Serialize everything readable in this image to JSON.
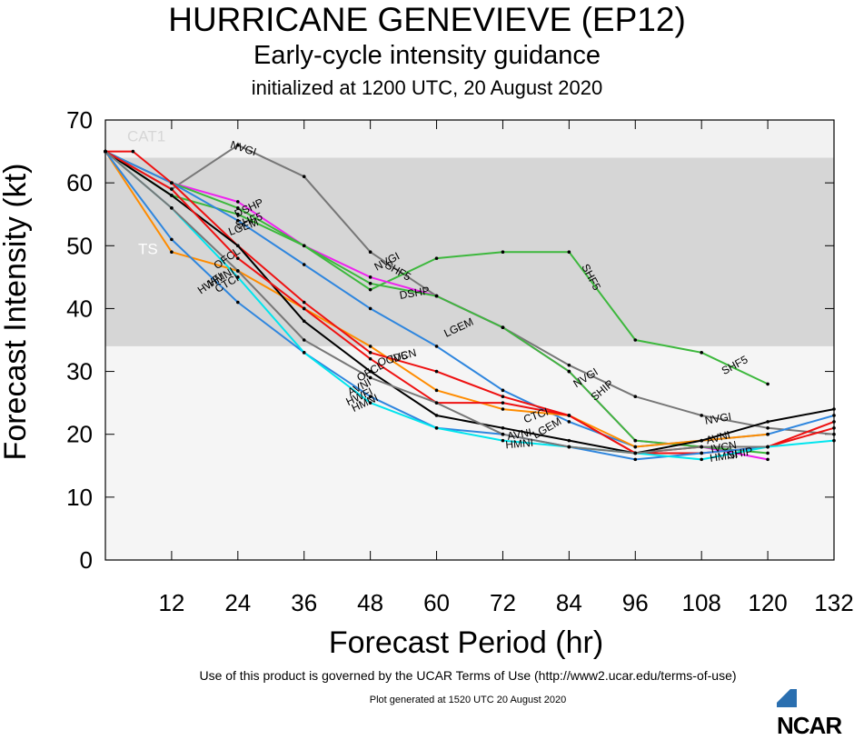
{
  "header": {
    "title": "HURRICANE GENEVIEVE (EP12)",
    "subtitle": "Early-cycle intensity guidance",
    "init_line": "initialized at 1200 UTC, 20 August 2020"
  },
  "footer": {
    "terms": "Use of this product is governed by the UCAR Terms of Use (http://www2.ucar.edu/terms-of-use)",
    "generated": "Plot generated at 1520 UTC  20 August 2020",
    "logo": "NCAR"
  },
  "chart_data": {
    "type": "line",
    "xlabel": "Forecast Period (hr)",
    "ylabel": "Forecast Intensity (kt)",
    "xlim": [
      0,
      132
    ],
    "ylim": [
      0,
      70
    ],
    "xticks": [
      12,
      24,
      36,
      48,
      60,
      72,
      84,
      96,
      108,
      120,
      132
    ],
    "yticks": [
      0,
      10,
      20,
      30,
      40,
      50,
      60,
      70
    ],
    "bands": [
      {
        "label": "CAT1",
        "from": 64,
        "to": 70,
        "color": "#f2f2f2"
      },
      {
        "label": "TS",
        "from": 34,
        "to": 64,
        "color": "#d6d6d6"
      }
    ],
    "series": [
      {
        "name": "NVGI",
        "color": "#777777",
        "x": [
          0,
          12,
          24,
          36,
          48,
          60,
          72,
          84,
          96,
          108,
          120,
          132
        ],
        "y": [
          65,
          59,
          66,
          61,
          49,
          42,
          37,
          31,
          26,
          23,
          21,
          20
        ]
      },
      {
        "name": "SHF5",
        "color": "#3db83d",
        "x": [
          0,
          12,
          24,
          36,
          48,
          60,
          72,
          84,
          96,
          108,
          120
        ],
        "y": [
          65,
          58,
          55,
          50,
          43,
          48,
          49,
          49,
          35,
          33,
          28
        ]
      },
      {
        "name": "DSHP",
        "color": "#ee22ee",
        "x": [
          0,
          12,
          24,
          36,
          48,
          60,
          72,
          84,
          96,
          108,
          120
        ],
        "y": [
          65,
          60,
          57,
          50,
          45,
          42,
          37,
          30,
          19,
          18,
          16
        ]
      },
      {
        "name": "SHIP",
        "color": "#3db83d",
        "x": [
          0,
          12,
          24,
          36,
          48,
          60,
          72,
          84,
          96,
          108,
          120
        ],
        "y": [
          65,
          60,
          56,
          50,
          44,
          42,
          37,
          30,
          19,
          18,
          17
        ]
      },
      {
        "name": "LGEM",
        "color": "#2f86de",
        "x": [
          0,
          12,
          24,
          36,
          48,
          60,
          72,
          84,
          96,
          108,
          120,
          132
        ],
        "y": [
          65,
          60,
          54,
          47,
          40,
          34,
          27,
          22,
          18,
          19,
          20,
          23
        ]
      },
      {
        "name": "OCD5",
        "color": "#ff8c00",
        "x": [
          0,
          12,
          24,
          36,
          48,
          60,
          72,
          84,
          96,
          108,
          120
        ],
        "y": [
          65,
          49,
          46,
          40,
          34,
          27,
          24,
          23,
          18,
          19,
          20
        ]
      },
      {
        "name": "OFCL",
        "color": "#ee1111",
        "x": [
          0,
          5,
          12,
          24,
          36,
          48,
          60,
          72,
          84,
          96,
          108,
          120,
          132
        ],
        "y": [
          65,
          65,
          60,
          50,
          41,
          33,
          30,
          26,
          23,
          17,
          18,
          18,
          22
        ]
      },
      {
        "name": "CTCI",
        "color": "#000000",
        "x": [
          0,
          12,
          24,
          36,
          48,
          60,
          72,
          84,
          96,
          108,
          120,
          132
        ],
        "y": [
          65,
          58,
          50,
          38,
          30,
          23,
          21,
          19,
          17,
          19,
          22,
          24
        ]
      },
      {
        "name": "IVCN",
        "color": "#ee1111",
        "x": [
          0,
          12,
          24,
          36,
          48,
          60,
          72,
          84,
          96,
          108,
          120,
          132
        ],
        "y": [
          65,
          59,
          48,
          40,
          32,
          25,
          25,
          23,
          17,
          17,
          18,
          21
        ]
      },
      {
        "name": "HWFI",
        "color": "#2f86de",
        "x": [
          0,
          12,
          24,
          36,
          48,
          60,
          72,
          84,
          96,
          108,
          120
        ],
        "y": [
          65,
          51,
          41,
          33,
          26,
          21,
          20,
          18,
          16,
          17,
          18
        ]
      },
      {
        "name": "HMNI",
        "color": "#00e5ee",
        "x": [
          0,
          12,
          24,
          36,
          48,
          60,
          72,
          84,
          96,
          108,
          120,
          132
        ],
        "y": [
          65,
          56,
          45,
          33,
          25,
          21,
          19,
          18,
          17,
          16,
          18,
          19
        ]
      },
      {
        "name": "AVNI",
        "color": "#777777",
        "x": [
          0,
          12,
          24,
          36,
          48,
          60,
          72,
          84,
          96,
          108,
          120
        ],
        "y": [
          65,
          56,
          46,
          35,
          29,
          25,
          20,
          18,
          17,
          18,
          18
        ]
      }
    ],
    "labels": [
      {
        "text": "NVGI",
        "x": 25,
        "y": 65.5,
        "rot": 18
      },
      {
        "text": "NVGI",
        "x": 51,
        "y": 47.5,
        "rot": -28
      },
      {
        "text": "NVGI",
        "x": 87,
        "y": 29,
        "rot": -32
      },
      {
        "text": "NVGI",
        "x": 111,
        "y": 22.5,
        "rot": -10
      },
      {
        "text": "SHF5",
        "x": 26,
        "y": 54,
        "rot": -20
      },
      {
        "text": "SHF5",
        "x": 53,
        "y": 46,
        "rot": 30
      },
      {
        "text": "SHF5",
        "x": 88,
        "y": 45,
        "rot": 62
      },
      {
        "text": "SHF5",
        "x": 114,
        "y": 31,
        "rot": -28
      },
      {
        "text": "DSHP",
        "x": 26,
        "y": 56,
        "rot": -25
      },
      {
        "text": "DSHP",
        "x": 56,
        "y": 42.5,
        "rot": -10
      },
      {
        "text": "SHIP",
        "x": 90,
        "y": 27,
        "rot": -40
      },
      {
        "text": "SHIP",
        "x": 115,
        "y": 17,
        "rot": -10
      },
      {
        "text": "LGEM",
        "x": 25,
        "y": 53,
        "rot": -20
      },
      {
        "text": "LGEM",
        "x": 64,
        "y": 37,
        "rot": -25
      },
      {
        "text": "LGEM",
        "x": 80,
        "y": 21,
        "rot": -30
      },
      {
        "text": "OCD5",
        "x": 52,
        "y": 32,
        "rot": -15
      },
      {
        "text": "OFCL",
        "x": 48,
        "y": 30,
        "rot": -30
      },
      {
        "text": "OFCL",
        "x": 22,
        "y": 48,
        "rot": -35
      },
      {
        "text": "CTCI",
        "x": 22,
        "y": 44,
        "rot": -30
      },
      {
        "text": "CTCI",
        "x": 78,
        "y": 23,
        "rot": -20
      },
      {
        "text": "IVCN",
        "x": 54,
        "y": 32.5,
        "rot": -15
      },
      {
        "text": "IVCN",
        "x": 112,
        "y": 18,
        "rot": -10
      },
      {
        "text": "HWFI",
        "x": 19,
        "y": 44,
        "rot": -35
      },
      {
        "text": "HWFI",
        "x": 46,
        "y": 26,
        "rot": -25
      },
      {
        "text": "HMNI",
        "x": 21,
        "y": 45,
        "rot": -30
      },
      {
        "text": "HMNI",
        "x": 47,
        "y": 25,
        "rot": -25
      },
      {
        "text": "HMNI",
        "x": 75,
        "y": 18.5,
        "rot": -5
      },
      {
        "text": "HMNI",
        "x": 112,
        "y": 16.5,
        "rot": -8
      },
      {
        "text": "AVNI",
        "x": 46,
        "y": 27.5,
        "rot": -28
      },
      {
        "text": "AVNI",
        "x": 75,
        "y": 20,
        "rot": -10
      },
      {
        "text": "AVNI",
        "x": 111,
        "y": 19.5,
        "rot": -15
      }
    ]
  }
}
